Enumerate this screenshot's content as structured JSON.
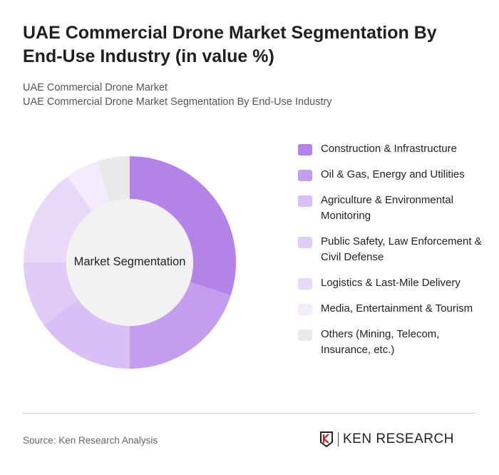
{
  "title": "UAE Commercial Drone Market Segmentation By End-Use Industry (in value %)",
  "subtitle1": "UAE Commercial Drone Market",
  "subtitle2": "UAE Commercial Drone Market Segmentation By End-Use Industry",
  "source": "Source: Ken Research Analysis",
  "logo_text": "KEN RESEARCH",
  "chart_data": {
    "type": "pie",
    "variant": "donut",
    "center_label": "Market Segmentation",
    "legend_position": "right",
    "categories": [
      "Construction & Infrastructure",
      "Oil & Gas, Energy and Utilities",
      "Agriculture & Environmental Monitoring",
      "Public Safety, Law Enforcement & Civil Defense",
      "Logistics & Last-Mile Delivery",
      "Media, Entertainment & Tourism",
      "Others (Mining, Telecom, Insurance, etc.)"
    ],
    "values": [
      30,
      20,
      15,
      10,
      15,
      5,
      5
    ],
    "colors": [
      "#b383ea",
      "#c39dee",
      "#d9bff5",
      "#e0cbf6",
      "#e8d9f8",
      "#f3ebfc",
      "#e9e9e9"
    ]
  }
}
